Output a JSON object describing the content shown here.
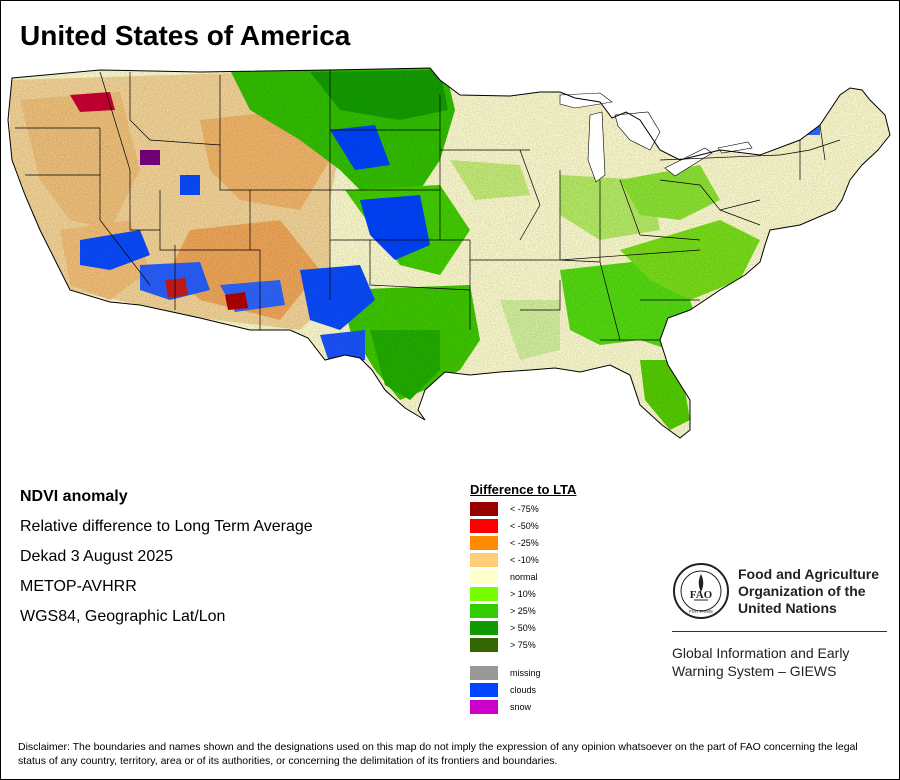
{
  "title": "United States of America",
  "info": {
    "product": "NDVI anomaly",
    "description": "Relative difference to Long Term Average",
    "period": "Dekad 3 August 2025",
    "sensor": "METOP-AVHRR",
    "projection": "WGS84, Geographic Lat/Lon"
  },
  "legend": {
    "title": "Difference to LTA",
    "classes": [
      {
        "label": "< -75%",
        "color": "#990000"
      },
      {
        "label": "< -50%",
        "color": "#ff0000"
      },
      {
        "label": "< -25%",
        "color": "#ff8c00"
      },
      {
        "label": "< -10%",
        "color": "#ffcc77"
      },
      {
        "label": "normal",
        "color": "#ffffcc"
      },
      {
        "label": "> 10%",
        "color": "#77ff00"
      },
      {
        "label": "> 25%",
        "color": "#33cc00"
      },
      {
        "label": "> 50%",
        "color": "#119900"
      },
      {
        "label": "> 75%",
        "color": "#336600"
      }
    ],
    "extra": [
      {
        "label": "missing",
        "color": "#999999"
      },
      {
        "label": "clouds",
        "color": "#0044ff"
      },
      {
        "label": "snow",
        "color": "#cc00cc"
      }
    ]
  },
  "fao": {
    "name_lines": [
      "Food and Agriculture",
      "Organization of the",
      "United Nations"
    ],
    "logo_letters": "FAO",
    "logo_motto": "FIAT PANIS"
  },
  "giews": {
    "lines": [
      "Global Information and Early",
      "Warning System – GIEWS"
    ]
  },
  "disclaimer": "Disclaimer: The boundaries and names shown and the designations used on this map do not imply the expression of any opinion whatsoever on the part of FAO concerning the legal status of any country, territory, area or of its authorities, or concerning the delimitation of its frontiers and boundaries."
}
